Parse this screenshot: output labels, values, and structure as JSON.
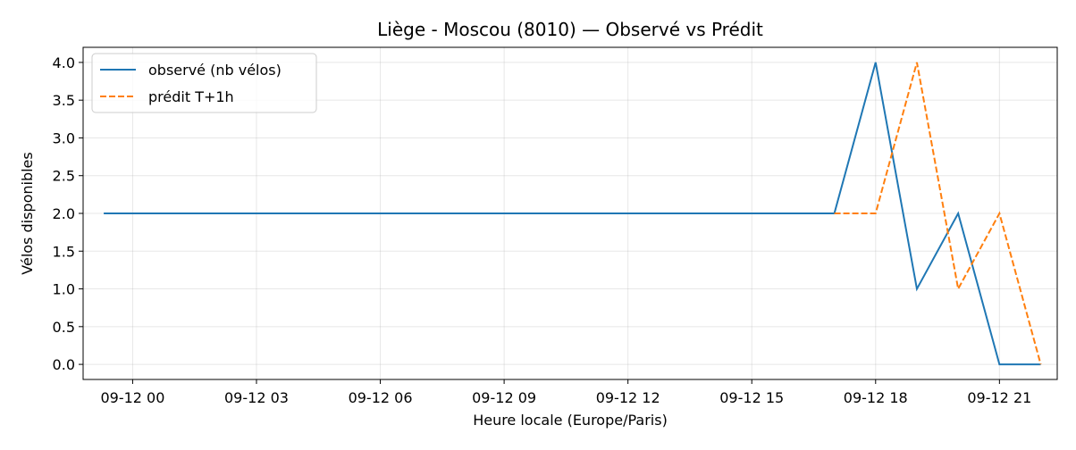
{
  "chart_data": {
    "type": "line",
    "title": "Liège - Moscou (8010) — Observé vs Prédit",
    "xlabel": "Heure locale (Europe/Paris)",
    "ylabel": "Vélos disponibles",
    "x_ticks": [
      "09-12 00",
      "09-12 03",
      "09-12 06",
      "09-12 09",
      "09-12 12",
      "09-12 15",
      "09-12 18",
      "09-12 21"
    ],
    "x_tick_hours": [
      0,
      3,
      6,
      9,
      12,
      15,
      18,
      21
    ],
    "xlim_hours": [
      -1.2,
      22.4
    ],
    "ylim": [
      -0.2,
      4.2
    ],
    "y_ticks": [
      0.0,
      0.5,
      1.0,
      1.5,
      2.0,
      2.5,
      3.0,
      3.5,
      4.0
    ],
    "grid": true,
    "legend_position": "top-left",
    "series": [
      {
        "name": "observé (nb vélos)",
        "color": "#1f77b4",
        "style": "solid",
        "x_hours": [
          -0.7,
          17,
          18,
          19,
          20,
          21,
          22
        ],
        "values": [
          2,
          2,
          4,
          1,
          2,
          0,
          0
        ]
      },
      {
        "name": "prédit T+1h",
        "color": "#ff7f0e",
        "style": "dashed",
        "x_hours": [
          17,
          18,
          19,
          20,
          21,
          22
        ],
        "values": [
          2,
          2,
          4,
          1,
          2,
          0
        ]
      }
    ]
  }
}
